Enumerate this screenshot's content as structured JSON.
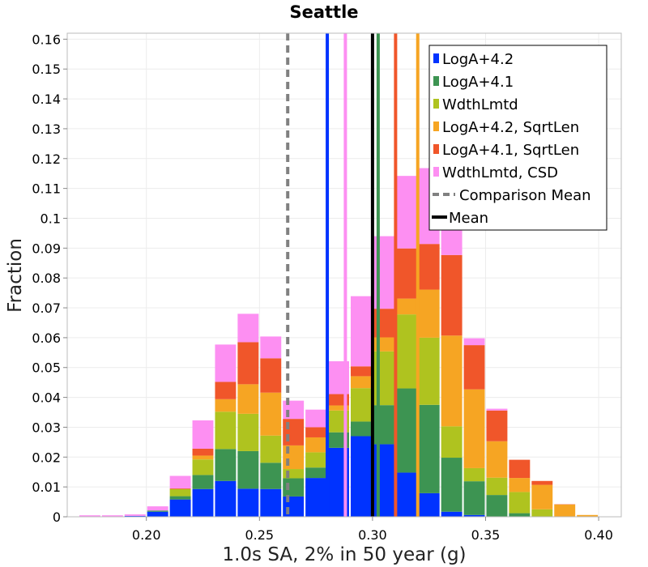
{
  "chart_data": {
    "type": "bar",
    "stacked": true,
    "title": "Seattle",
    "xlabel": "1.0s SA, 2% in 50 year (g)",
    "ylabel": "Fraction",
    "xlim": [
      0.165,
      0.41
    ],
    "ylim": [
      0,
      0.162
    ],
    "bin_width": 0.01,
    "x_ticks": [
      "0.20",
      "0.25",
      "0.30",
      "0.35",
      "0.40"
    ],
    "x_tick_values": [
      0.2,
      0.25,
      0.3,
      0.35,
      0.4
    ],
    "y_ticks": [
      "0",
      "0.01",
      "0.02",
      "0.03",
      "0.04",
      "0.05",
      "0.06",
      "0.07",
      "0.08",
      "0.09",
      "0.1",
      "0.11",
      "0.12",
      "0.13",
      "0.14",
      "0.15",
      "0.16"
    ],
    "y_tick_values": [
      0,
      0.01,
      0.02,
      0.03,
      0.04,
      0.05,
      0.06,
      0.07,
      0.08,
      0.09,
      0.1,
      0.11,
      0.12,
      0.13,
      0.14,
      0.15,
      0.16
    ],
    "grid": true,
    "legend_position": "top-right",
    "bin_centers": [
      0.175,
      0.185,
      0.195,
      0.205,
      0.215,
      0.225,
      0.235,
      0.245,
      0.255,
      0.265,
      0.275,
      0.285,
      0.295,
      0.305,
      0.315,
      0.325,
      0.335,
      0.345,
      0.355,
      0.365,
      0.375,
      0.385,
      0.395,
      0.405
    ],
    "series": [
      {
        "name": "LogA+4.2",
        "color": "#0033ff",
        "values": [
          0.0,
          0.0,
          0.0003,
          0.0017,
          0.0058,
          0.0093,
          0.012,
          0.0094,
          0.0093,
          0.0068,
          0.013,
          0.0231,
          0.027,
          0.0243,
          0.0148,
          0.0079,
          0.0017,
          0.0006,
          0.0001,
          0.0001,
          0.0,
          0.0,
          0.0,
          0.0
        ]
      },
      {
        "name": "LogA+4.1",
        "color": "#3d9452",
        "values": [
          0.0,
          0.0,
          0.0,
          0.0004,
          0.0011,
          0.0047,
          0.0107,
          0.0126,
          0.0088,
          0.0061,
          0.0035,
          0.0052,
          0.0049,
          0.0131,
          0.0282,
          0.0296,
          0.0181,
          0.0113,
          0.0072,
          0.0011,
          0.0,
          0.0,
          0.0,
          0.0
        ]
      },
      {
        "name": "WdthLmtd",
        "color": "#afc31f",
        "values": [
          0.0,
          0.0,
          0.0,
          0.0,
          0.0024,
          0.0052,
          0.0125,
          0.0125,
          0.0091,
          0.0031,
          0.0051,
          0.0073,
          0.0112,
          0.018,
          0.0248,
          0.0225,
          0.0105,
          0.0044,
          0.0058,
          0.0071,
          0.0025,
          0.0,
          0.0,
          0.0
        ]
      },
      {
        "name": "LogA+4.2, SqrtLen",
        "color": "#f6a523",
        "values": [
          0.0,
          0.0,
          0.0,
          0.0,
          0.0,
          0.0013,
          0.0042,
          0.0099,
          0.0144,
          0.0079,
          0.005,
          0.0017,
          0.004,
          0.0047,
          0.0053,
          0.0161,
          0.0304,
          0.0264,
          0.0122,
          0.0047,
          0.0082,
          0.0041,
          0.0006,
          0.0001
        ]
      },
      {
        "name": "LogA+4.1, SqrtLen",
        "color": "#f0562a",
        "values": [
          0.0,
          0.0,
          0.0,
          0.0,
          0.0002,
          0.0023,
          0.0058,
          0.0141,
          0.0115,
          0.0089,
          0.0034,
          0.0038,
          0.0033,
          0.0096,
          0.0168,
          0.0153,
          0.027,
          0.0148,
          0.0103,
          0.0061,
          0.0013,
          0.0001,
          0.0,
          0.0
        ]
      },
      {
        "name": "WdthLmtd, CSD",
        "color": "#fd8ff2",
        "values": [
          0.0005,
          0.0005,
          0.0005,
          0.0014,
          0.0042,
          0.0095,
          0.0125,
          0.0095,
          0.0073,
          0.0061,
          0.0059,
          0.011,
          0.0235,
          0.0243,
          0.0243,
          0.0254,
          0.0153,
          0.0023,
          0.0006,
          0.0,
          0.0,
          0.0,
          0.0,
          0.0
        ]
      }
    ],
    "vertical_lines": [
      {
        "x": 0.2625,
        "color": "#808080",
        "dashed": true
      },
      {
        "x": 0.28,
        "color": "#0033ff",
        "dashed": false
      },
      {
        "x": 0.288,
        "color": "#fd8ff2",
        "dashed": false
      },
      {
        "x": 0.3,
        "color": "#000000",
        "dashed": false
      },
      {
        "x": 0.3025,
        "color": "#3d9452",
        "dashed": false
      },
      {
        "x": 0.3102,
        "color": "#f0562a",
        "dashed": false
      },
      {
        "x": 0.32,
        "color": "#f6a523",
        "dashed": false
      }
    ],
    "legend": [
      {
        "label": "LogA+4.2",
        "color": "#0033ff",
        "kind": "bar"
      },
      {
        "label": "LogA+4.1",
        "color": "#3d9452",
        "kind": "bar"
      },
      {
        "label": "WdthLmtd",
        "color": "#afc31f",
        "kind": "bar"
      },
      {
        "label": "LogA+4.2, SqrtLen",
        "color": "#f6a523",
        "kind": "bar"
      },
      {
        "label": "LogA+4.1, SqrtLen",
        "color": "#f0562a",
        "kind": "bar"
      },
      {
        "label": "WdthLmtd, CSD",
        "color": "#fd8ff2",
        "kind": "bar"
      },
      {
        "label": "Comparison Mean",
        "color": "#808080",
        "kind": "dashed-line"
      },
      {
        "label": "Mean",
        "color": "#000000",
        "kind": "line"
      }
    ]
  }
}
